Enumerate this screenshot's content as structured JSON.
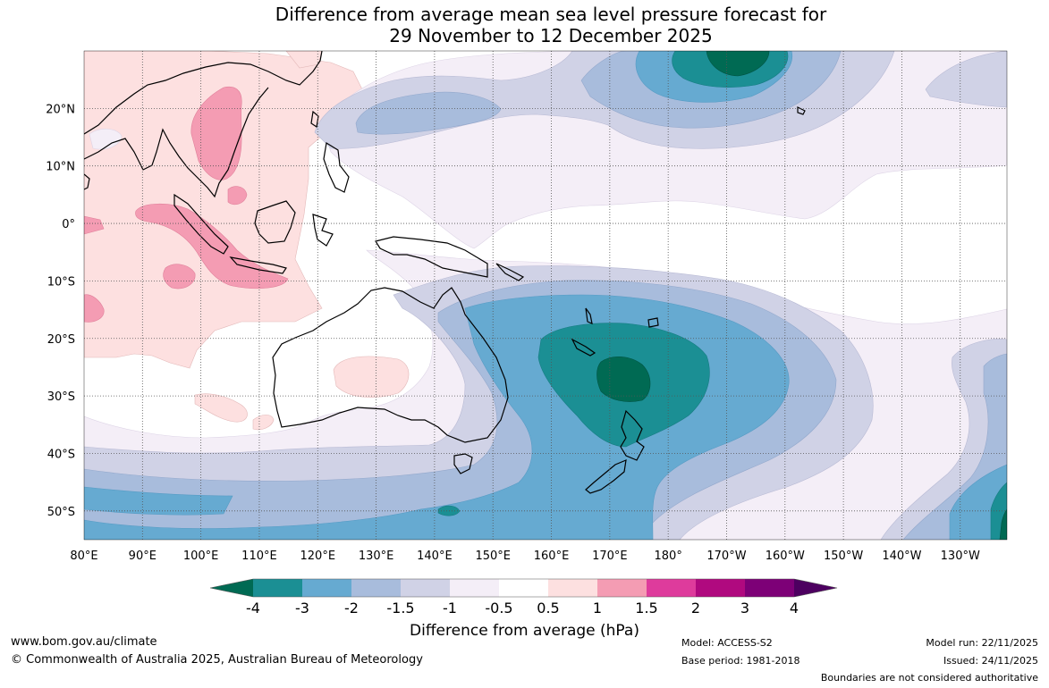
{
  "title": {
    "line1": "Difference from average mean sea level pressure forecast for",
    "line2": "29 November to 12 December 2025"
  },
  "map": {
    "lon_range": [
      80,
      238
    ],
    "lat_range": [
      -55,
      30
    ],
    "lon_ticks": [
      {
        "value": 80,
        "label": "80°E"
      },
      {
        "value": 90,
        "label": "90°E"
      },
      {
        "value": 100,
        "label": "100°E"
      },
      {
        "value": 110,
        "label": "110°E"
      },
      {
        "value": 120,
        "label": "120°E"
      },
      {
        "value": 130,
        "label": "130°E"
      },
      {
        "value": 140,
        "label": "140°E"
      },
      {
        "value": 150,
        "label": "150°E"
      },
      {
        "value": 160,
        "label": "160°E"
      },
      {
        "value": 170,
        "label": "170°E"
      },
      {
        "value": 180,
        "label": "180°"
      },
      {
        "value": 190,
        "label": "170°W"
      },
      {
        "value": 200,
        "label": "160°W"
      },
      {
        "value": 210,
        "label": "150°W"
      },
      {
        "value": 220,
        "label": "140°W"
      },
      {
        "value": 230,
        "label": "130°W"
      }
    ],
    "lat_ticks": [
      {
        "value": 20,
        "label": "20°N"
      },
      {
        "value": 10,
        "label": "10°N"
      },
      {
        "value": 0,
        "label": "0°"
      },
      {
        "value": -10,
        "label": "10°S"
      },
      {
        "value": -20,
        "label": "20°S"
      },
      {
        "value": -30,
        "label": "30°S"
      },
      {
        "value": -40,
        "label": "40°S"
      },
      {
        "value": -50,
        "label": "50°S"
      }
    ],
    "grid": "dotted"
  },
  "colorbar": {
    "title": "Difference from average (hPa)",
    "tick_labels": [
      "-4",
      "-3",
      "-2",
      "-1.5",
      "-1",
      "-0.5",
      "0.5",
      "1",
      "1.5",
      "2",
      "3",
      "4"
    ],
    "colors": [
      "#006a53",
      "#1b8f94",
      "#66aad1",
      "#a8bcdc",
      "#d0d2e6",
      "#f4eef7",
      "#ffffff",
      "#fde0e0",
      "#f49cb3",
      "#de3b9c",
      "#b0097f",
      "#7d0077",
      "#4d0060"
    ]
  },
  "footer": {
    "website": "www.bom.gov.au/climate",
    "copyright": "© Commonwealth of Australia 2025, Australian Bureau of Meteorology",
    "model": "Model: ACCESS-S2",
    "base_period": "Base period: 1981-2018",
    "model_run": "Model run: 22/11/2025",
    "issued": "Issued: 24/11/2025",
    "boundaries": "Boundaries are not considered authoritative"
  }
}
